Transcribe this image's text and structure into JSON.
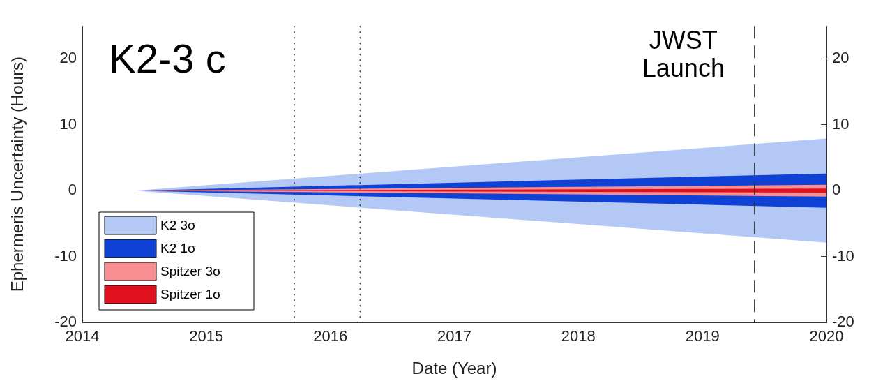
{
  "chart_data": {
    "type": "line",
    "title": "K2-3 c",
    "xlabel": "Date (Year)",
    "ylabel": "Ephermeris Uncertainty (Hours)",
    "x": [
      2014.42,
      2020
    ],
    "series": [
      {
        "name": "K2 3σ",
        "color": "#b3c8f5",
        "values": [
          null,
          null
        ],
        "lower": [
          0,
          -7.9
        ],
        "upper": [
          0,
          7.9
        ]
      },
      {
        "name": "K2 1σ",
        "color": "#0f41d4",
        "values": [
          null,
          null
        ],
        "lower": [
          0,
          -2.6
        ],
        "upper": [
          0,
          2.6
        ]
      },
      {
        "name": "Spitzer 3σ",
        "color": "#f98f93",
        "values": [
          null,
          null
        ],
        "lower": [
          0,
          -0.9
        ],
        "upper": [
          0,
          0.9
        ]
      },
      {
        "name": "Spitzer 1σ",
        "color": "#e0111d",
        "values": [
          null,
          null
        ],
        "lower": [
          0,
          -0.3
        ],
        "upper": [
          0,
          0.3
        ]
      }
    ],
    "xlim": [
      2014,
      2020
    ],
    "xticks": [
      2014,
      2015,
      2016,
      2017,
      2018,
      2019,
      2020
    ],
    "ylim": [
      -20,
      25
    ],
    "yticks": [
      -20,
      -10,
      0,
      10,
      20
    ],
    "y2lim": [
      -20,
      25
    ],
    "y2ticks": [
      -20,
      -10,
      0,
      10,
      20
    ],
    "ref_lines": [
      {
        "axis": "x",
        "value": 2015.71,
        "line_style": "dotted"
      },
      {
        "axis": "x",
        "value": 2016.24,
        "line_style": "dotted"
      },
      {
        "axis": "x",
        "value": 2019.42,
        "line_style": "dashed",
        "label": "JWST\nLaunch"
      }
    ],
    "legend": "bottom left",
    "grid": false
  }
}
